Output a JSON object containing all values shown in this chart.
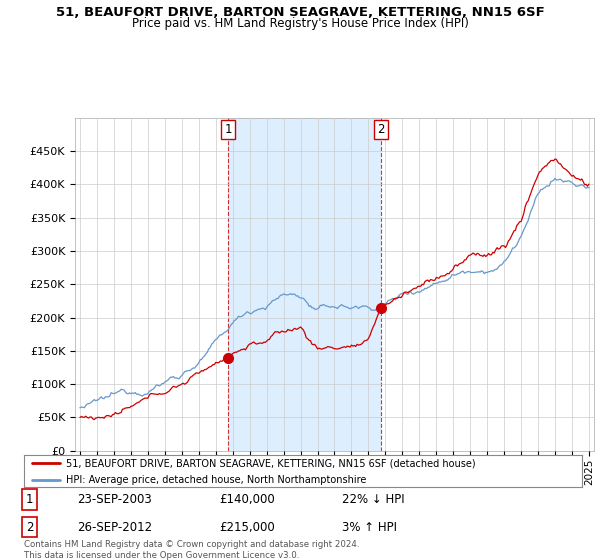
{
  "title": "51, BEAUFORT DRIVE, BARTON SEAGRAVE, KETTERING, NN15 6SF",
  "subtitle": "Price paid vs. HM Land Registry's House Price Index (HPI)",
  "legend_line1": "51, BEAUFORT DRIVE, BARTON SEAGRAVE, KETTERING, NN15 6SF (detached house)",
  "legend_line2": "HPI: Average price, detached house, North Northamptonshire",
  "transaction1_date": "23-SEP-2003",
  "transaction1_price": "£140,000",
  "transaction1_hpi": "22% ↓ HPI",
  "transaction2_date": "26-SEP-2012",
  "transaction2_price": "£215,000",
  "transaction2_hpi": "3% ↑ HPI",
  "footer": "Contains HM Land Registry data © Crown copyright and database right 2024.\nThis data is licensed under the Open Government Licence v3.0.",
  "red_color": "#cc0000",
  "blue_color": "#6699cc",
  "shade_color": "#ddeeff",
  "grid_color": "#cccccc",
  "background_color": "#ffffff",
  "ylim": [
    0,
    500000
  ],
  "yticks": [
    0,
    50000,
    100000,
    150000,
    200000,
    250000,
    300000,
    350000,
    400000,
    450000
  ],
  "xlim_start": 1994.7,
  "xlim_end": 2025.3,
  "t1_x": 2003.73,
  "t1_y": 140000,
  "t2_x": 2012.73,
  "t2_y": 215000
}
